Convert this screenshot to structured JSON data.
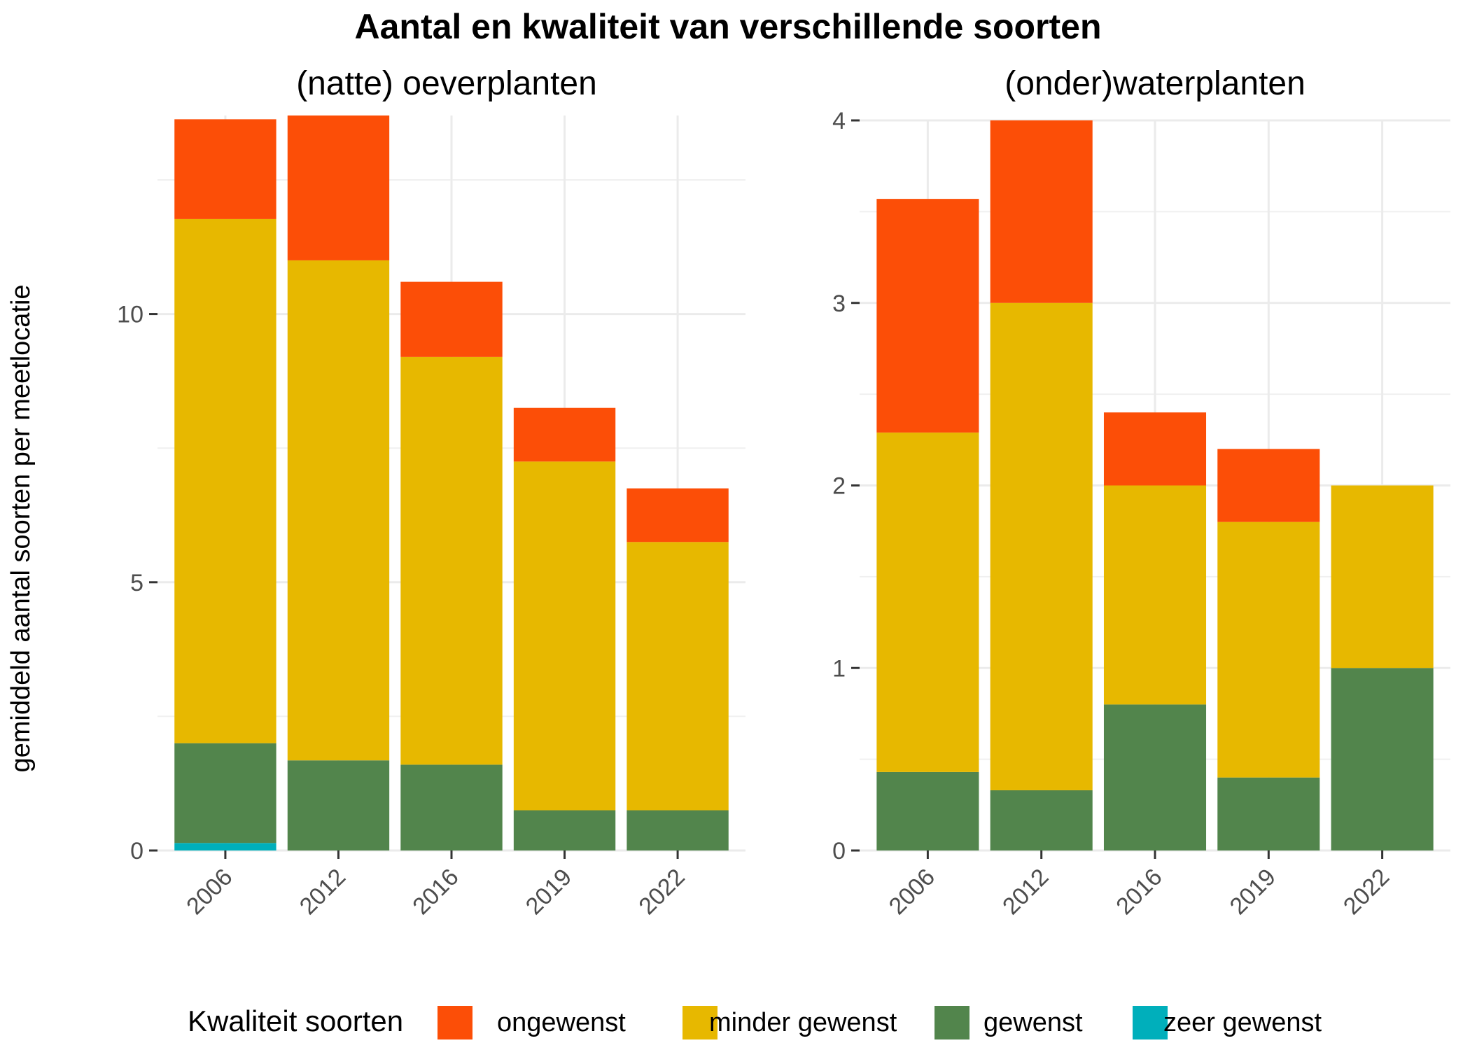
{
  "chart_data": {
    "type": "bar",
    "stacked": true,
    "title": "Aantal en kwaliteit van verschillende soorten",
    "ylabel": "gemiddeld aantal soorten per meetlocatie",
    "grid": true,
    "legend": {
      "title": "Kwaliteit soorten",
      "position": "bottom",
      "entries": [
        {
          "name": "ongewenst",
          "color": "#fc4e07"
        },
        {
          "name": "minder gewenst",
          "color": "#e7b800"
        },
        {
          "name": "gewenst",
          "color": "#52854c"
        },
        {
          "name": "zeer gewenst",
          "color": "#00afbb"
        }
      ]
    },
    "panels": [
      {
        "subtitle": "(natte) oeverplanten",
        "categories": [
          "2006",
          "2012",
          "2016",
          "2019",
          "2022"
        ],
        "ylim": [
          0,
          13.7
        ],
        "yticks": [
          0,
          5,
          10
        ],
        "ytick_labels": [
          "0",
          "5",
          "10"
        ],
        "series": [
          {
            "name": "zeer gewenst",
            "values": [
              0.14,
              0,
              0,
              0,
              0
            ]
          },
          {
            "name": "gewenst",
            "values": [
              1.86,
              1.68,
              1.6,
              0.75,
              0.75
            ]
          },
          {
            "name": "minder gewenst",
            "values": [
              9.77,
              9.32,
              7.6,
              6.5,
              5.0
            ]
          },
          {
            "name": "ongewenst",
            "values": [
              1.86,
              2.7,
              1.4,
              1.0,
              1.0
            ]
          }
        ]
      },
      {
        "subtitle": "(onder)waterplanten",
        "categories": [
          "2006",
          "2012",
          "2016",
          "2019",
          "2022"
        ],
        "ylim": [
          0,
          4.0
        ],
        "yticks": [
          0,
          1,
          2,
          3,
          4
        ],
        "ytick_labels": [
          "0",
          "1",
          "2",
          "3",
          "4"
        ],
        "series": [
          {
            "name": "zeer gewenst",
            "values": [
              0,
              0,
              0,
              0,
              0
            ]
          },
          {
            "name": "gewenst",
            "values": [
              0.43,
              0.33,
              0.8,
              0.4,
              1.0
            ]
          },
          {
            "name": "minder gewenst",
            "values": [
              1.86,
              2.67,
              1.2,
              1.4,
              1.0
            ]
          },
          {
            "name": "ongewenst",
            "values": [
              1.28,
              1.0,
              0.4,
              0.4,
              0
            ]
          }
        ]
      }
    ]
  }
}
